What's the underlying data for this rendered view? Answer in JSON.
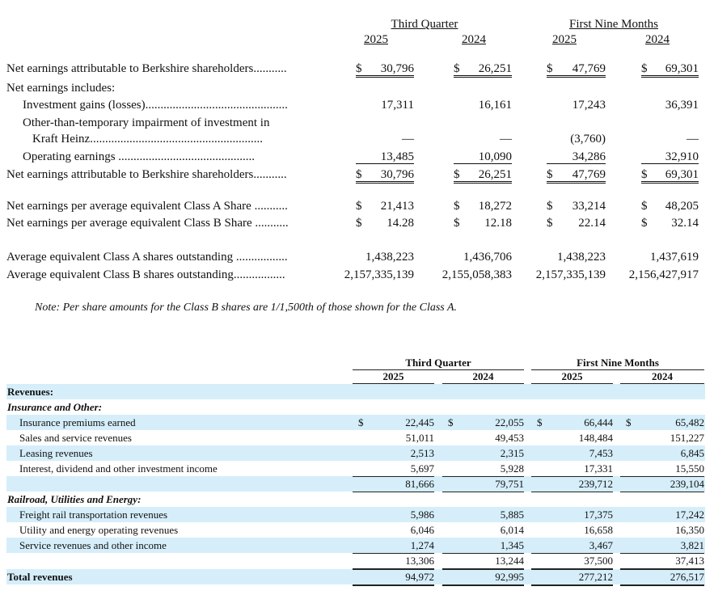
{
  "top_table": {
    "header": {
      "third_quarter": "Third Quarter",
      "first_nine_months": "First Nine Months",
      "years": [
        "2025",
        "2024",
        "2025",
        "2024"
      ]
    },
    "rows": [
      {
        "label": "Net earnings attributable to Berkshire shareholders...........",
        "dollar": true,
        "values": [
          "30,796",
          "26,251",
          "47,769",
          "69,301"
        ],
        "style": "double"
      },
      {
        "label": "Net earnings includes:",
        "values": []
      },
      {
        "label": "Investment gains (losses)...............................................",
        "indent": 1,
        "values": [
          "17,311",
          "16,161",
          "17,243",
          "36,391"
        ]
      },
      {
        "label": "Other-than-temporary impairment of investment in",
        "indent": 1,
        "values": []
      },
      {
        "label": "Kraft Heinz.........................................................",
        "indent": 2,
        "values": [
          "—",
          "—",
          "(3,760)",
          "—"
        ]
      },
      {
        "label": "Operating earnings .............................................",
        "indent": 1,
        "values": [
          "13,485",
          "10,090",
          "34,286",
          "32,910"
        ],
        "style": "single"
      },
      {
        "label": "Net earnings attributable to Berkshire shareholders...........",
        "dollar": true,
        "values": [
          "30,796",
          "26,251",
          "47,769",
          "69,301"
        ],
        "style": "double"
      },
      {
        "label": "Net earnings per average equivalent Class A Share ...........",
        "dollar": true,
        "values": [
          "21,413",
          "18,272",
          "33,214",
          "48,205"
        ]
      },
      {
        "label": "Net earnings per average equivalent Class B Share ...........",
        "dollar": true,
        "values": [
          "14.28",
          "12.18",
          "22.14",
          "32.14"
        ]
      },
      {
        "label": "Average equivalent Class A shares outstanding .................",
        "values": [
          "1,438,223",
          "1,436,706",
          "1,438,223",
          "1,437,619"
        ]
      },
      {
        "label": "Average equivalent Class B shares outstanding.................",
        "values": [
          "2,157,335,139",
          "2,155,058,383",
          "2,157,335,139",
          "2,156,427,917"
        ]
      }
    ],
    "dollar_sign": "$",
    "note": "Note:  Per share amounts for the Class B shares are 1/1,500th of those shown for the Class A."
  },
  "revenue_table": {
    "header": {
      "third_quarter": "Third Quarter",
      "first_nine_months": "First Nine Months",
      "years": [
        "2025",
        "2024",
        "2025",
        "2024"
      ]
    },
    "band_color": "#d5eefa",
    "dollar_sign": "$",
    "rows": [
      {
        "label": "Revenues:",
        "kind": "heading-bold",
        "values": []
      },
      {
        "label": "Insurance and Other:",
        "kind": "heading-italic",
        "values": []
      },
      {
        "label": "Insurance premiums earned",
        "dollar": true,
        "values": [
          "22,445",
          "22,055",
          "66,444",
          "65,482"
        ]
      },
      {
        "label": "Sales and service revenues",
        "values": [
          "51,011",
          "49,453",
          "148,484",
          "151,227"
        ]
      },
      {
        "label": "Leasing revenues",
        "values": [
          "2,513",
          "2,315",
          "7,453",
          "6,845"
        ]
      },
      {
        "label": "Interest, dividend and other investment income",
        "values": [
          "5,697",
          "5,928",
          "17,331",
          "15,550"
        ]
      },
      {
        "label": "",
        "kind": "subtotal",
        "values": [
          "81,666",
          "79,751",
          "239,712",
          "239,104"
        ]
      },
      {
        "label": "Railroad, Utilities and Energy:",
        "kind": "heading-italic",
        "values": []
      },
      {
        "label": "Freight rail transportation revenues",
        "values": [
          "5,986",
          "5,885",
          "17,375",
          "17,242"
        ]
      },
      {
        "label": "Utility and energy operating revenues",
        "values": [
          "6,046",
          "6,014",
          "16,658",
          "16,350"
        ]
      },
      {
        "label": "Service revenues and other income",
        "values": [
          "1,274",
          "1,345",
          "3,467",
          "3,821"
        ]
      },
      {
        "label": "",
        "kind": "subtotal",
        "values": [
          "13,306",
          "13,244",
          "37,500",
          "37,413"
        ]
      },
      {
        "label": "Total revenues",
        "kind": "total",
        "values": [
          "94,972",
          "92,995",
          "277,212",
          "276,517"
        ]
      }
    ]
  }
}
